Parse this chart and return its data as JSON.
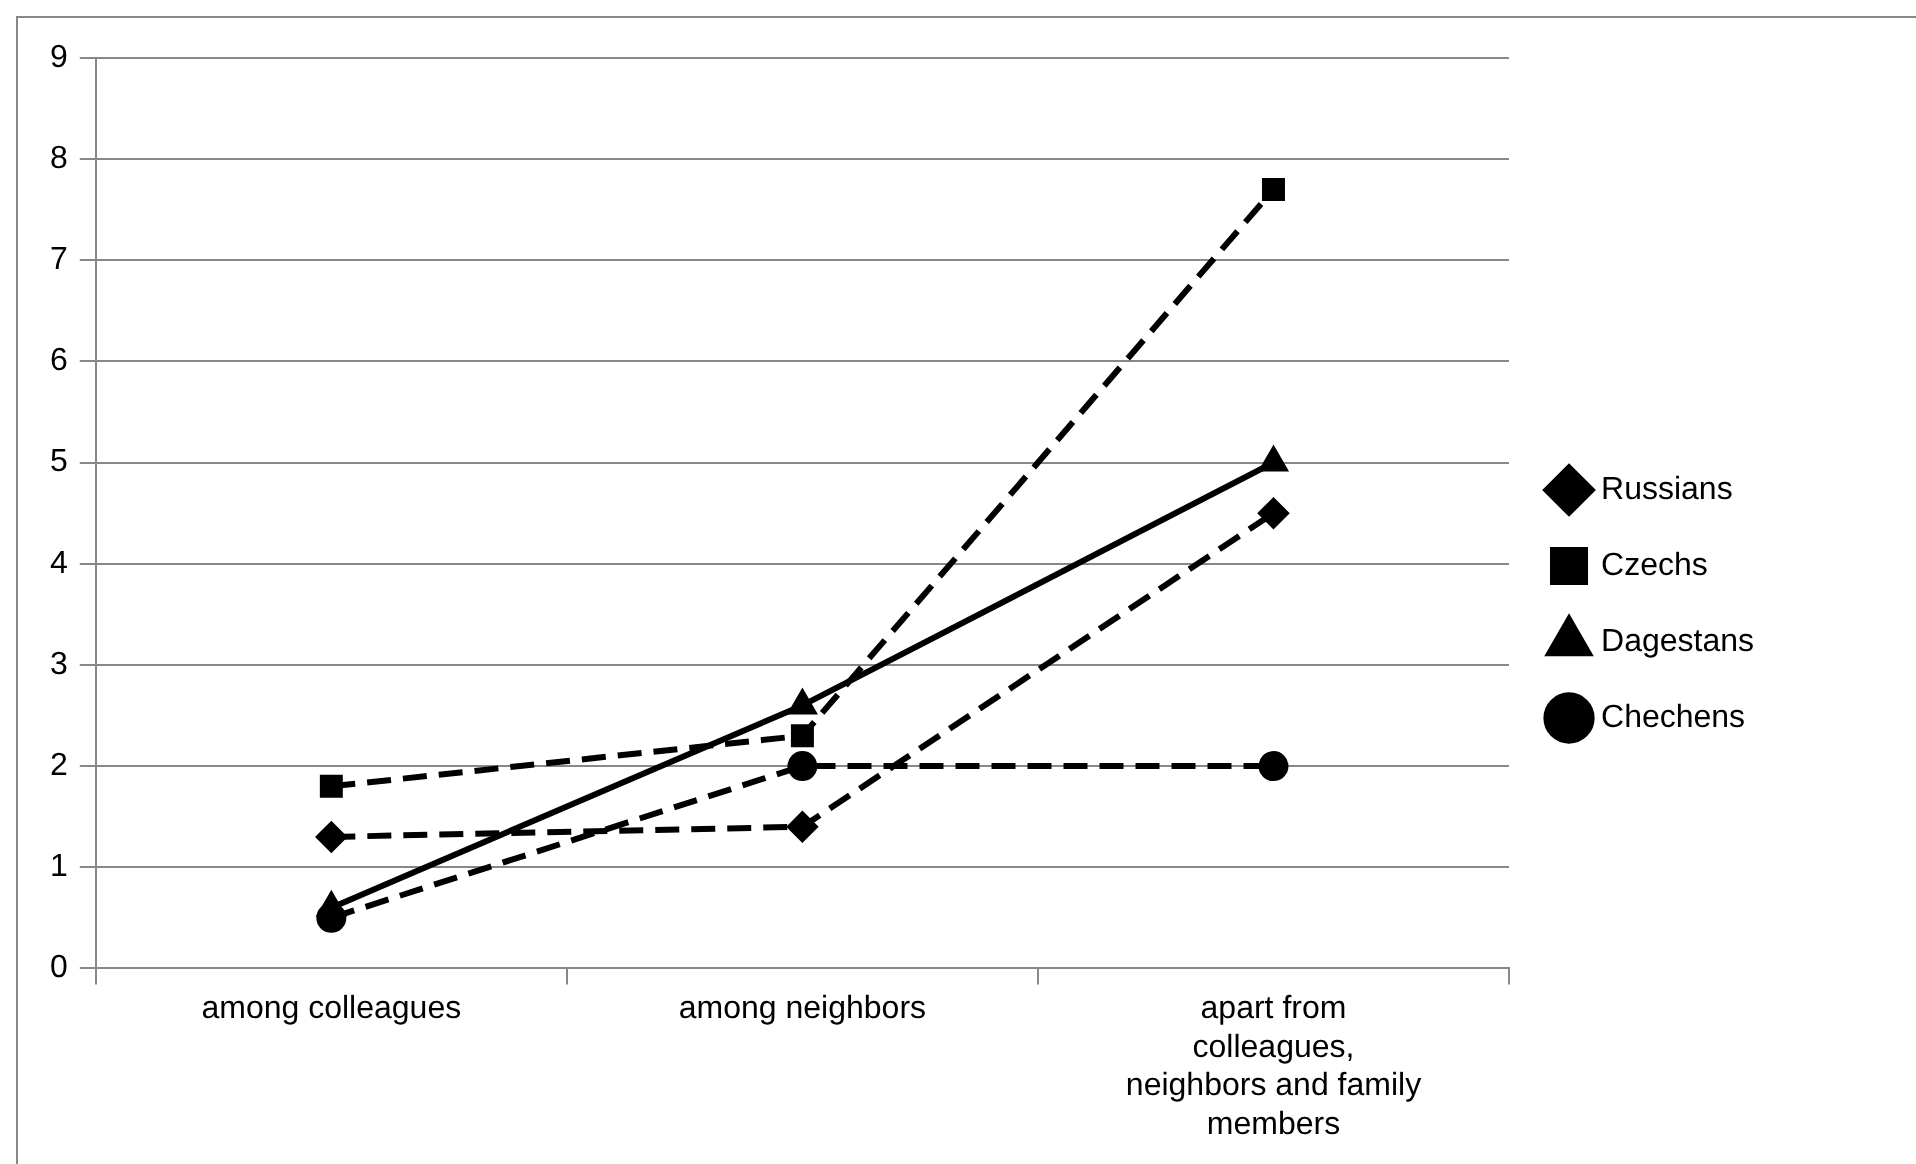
{
  "chart_data": {
    "type": "line",
    "categories": [
      "among colleagues",
      "among neighbors",
      "apart from colleagues, neighbors and family members"
    ],
    "series": [
      {
        "name": "Russians",
        "color": "#000000",
        "values": [
          1.3,
          1.4,
          4.5
        ],
        "marker": "diamond",
        "line_style": "dashed"
      },
      {
        "name": "Czechs",
        "color": "#000000",
        "values": [
          1.8,
          2.3,
          7.7
        ],
        "marker": "square",
        "line_style": "dashed"
      },
      {
        "name": "Dagestans",
        "color": "#000000",
        "values": [
          0.6,
          2.6,
          5.0
        ],
        "marker": "triangle",
        "line_style": "solid"
      },
      {
        "name": "Chechens",
        "color": "#000000",
        "values": [
          0.5,
          2.0,
          2.0
        ],
        "marker": "circle",
        "line_style": "dashed"
      }
    ],
    "ylim": [
      0,
      9
    ],
    "yticks": [
      0,
      1,
      2,
      3,
      4,
      5,
      6,
      7,
      8,
      9
    ],
    "grid": "y",
    "legend": "right"
  }
}
